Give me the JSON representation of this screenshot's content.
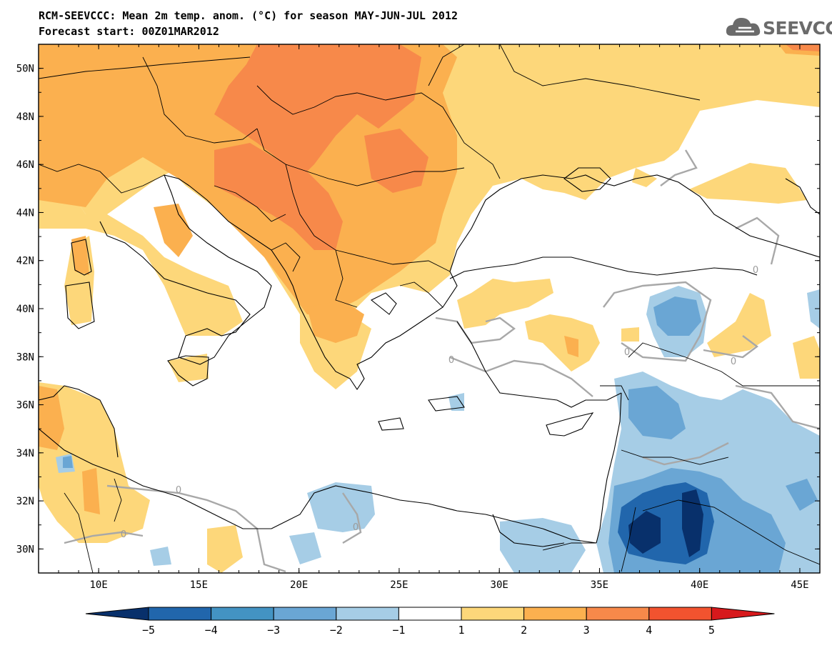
{
  "header": {
    "title_line1": "RCM-SEEVCCC: Mean 2m temp. anom. (°C) for season MAY-JUN-JUL 2012",
    "title_line2": "Forecast start: 00Z01MAR2012"
  },
  "logo": {
    "text": "SEEVCCC",
    "icon": "cloud-icon"
  },
  "map": {
    "projection": "lat-lon",
    "lon_range": [
      7,
      46
    ],
    "lat_range": [
      29,
      51
    ],
    "lon_ticks": [
      {
        "value": 10,
        "label": "10E"
      },
      {
        "value": 15,
        "label": "15E"
      },
      {
        "value": 20,
        "label": "20E"
      },
      {
        "value": 25,
        "label": "25E"
      },
      {
        "value": 30,
        "label": "30E"
      },
      {
        "value": 35,
        "label": "35E"
      },
      {
        "value": 40,
        "label": "40E"
      },
      {
        "value": 45,
        "label": "45E"
      }
    ],
    "lat_ticks": [
      {
        "value": 30,
        "label": "30N"
      },
      {
        "value": 32,
        "label": "32N"
      },
      {
        "value": 34,
        "label": "34N"
      },
      {
        "value": 36,
        "label": "36N"
      },
      {
        "value": 38,
        "label": "38N"
      },
      {
        "value": 40,
        "label": "40N"
      },
      {
        "value": 42,
        "label": "42N"
      },
      {
        "value": 44,
        "label": "44N"
      },
      {
        "value": 46,
        "label": "46N"
      },
      {
        "value": 48,
        "label": "48N"
      },
      {
        "value": 50,
        "label": "50N"
      }
    ],
    "contour_labels": [
      "0",
      "0",
      "0",
      "0",
      "0",
      "0",
      "0"
    ]
  },
  "colorbar": {
    "levels": [
      "-5",
      "-4",
      "-3",
      "-2",
      "-1",
      "1",
      "2",
      "3",
      "4",
      "5"
    ],
    "colors": [
      "#08306b",
      "#2166ac",
      "#4393c3",
      "#6aa6d4",
      "#a6cde6",
      "#ffffff",
      "#fdd77a",
      "#fbb04f",
      "#f7894a",
      "#f2532f",
      "#d7191c"
    ]
  },
  "anomaly_colors": {
    "cold_4_5": "#08306b",
    "cold_3_4": "#2166ac",
    "cold_2_3": "#4393c3",
    "cold_1_2": "#a6cde6",
    "warm_1_2": "#fdd77a",
    "warm_2_3": "#fbb04f",
    "warm_3_4": "#f7894a",
    "warm_4_5": "#f2532f"
  }
}
